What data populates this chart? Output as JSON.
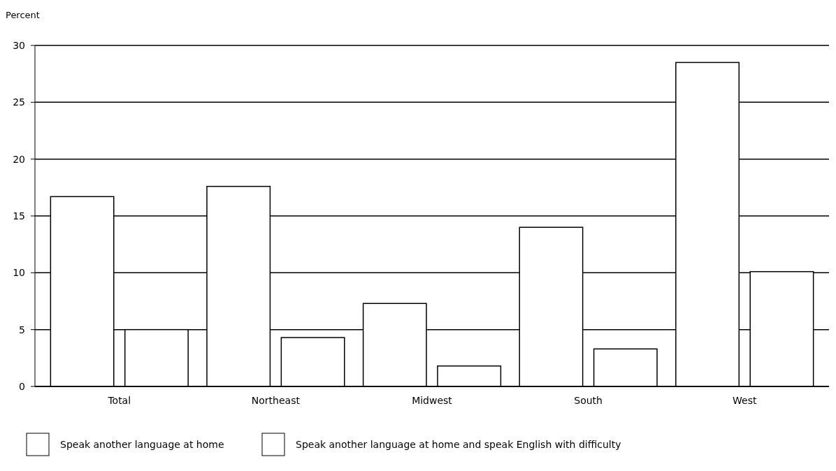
{
  "chart_data": {
    "type": "bar",
    "ylabel": "Percent",
    "categories": [
      "Total",
      "Northeast",
      "Midwest",
      "South",
      "West"
    ],
    "series": [
      {
        "name": "Speak another language at home",
        "color": "#ffffff",
        "values": [
          16.7,
          17.6,
          7.3,
          14.0,
          28.5
        ]
      },
      {
        "name": "Speak another language at home and speak English with difficulty",
        "color": "#ffffff",
        "values": [
          5.0,
          4.3,
          1.8,
          3.3,
          10.1
        ]
      }
    ],
    "ylim": [
      0,
      30
    ],
    "yticks": [
      0,
      5,
      10,
      15,
      20,
      25,
      30
    ],
    "grid": "y",
    "legend": "bottom"
  }
}
